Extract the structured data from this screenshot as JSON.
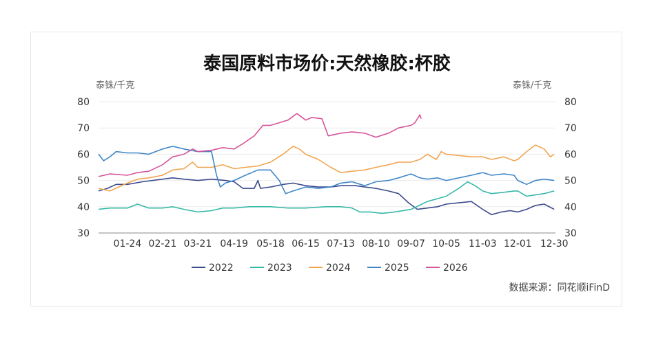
{
  "chart_data": {
    "type": "line",
    "title": "泰国原料市场价:天然橡胶:杯胶",
    "ylabel_left": "泰铢/千克",
    "ylabel_right": "泰铢/千克",
    "ylim": [
      30,
      80
    ],
    "yticks": [
      30,
      40,
      50,
      60,
      70,
      80
    ],
    "x_range": [
      "01-01",
      "12-31"
    ],
    "xticks": [
      "01-24",
      "02-21",
      "03-21",
      "04-19",
      "05-18",
      "06-15",
      "07-13",
      "08-10",
      "09-07",
      "10-05",
      "11-03",
      "12-01",
      "12-30"
    ],
    "grid": true,
    "legend_position": "bottom",
    "source": "数据来源：同花顺iFinD",
    "series": [
      {
        "name": "2022",
        "color": "#3b4a8c",
        "points": [
          [
            "01-01",
            46
          ],
          [
            "01-08",
            47
          ],
          [
            "01-15",
            48.5
          ],
          [
            "01-24",
            48.5
          ],
          [
            "02-05",
            49.5
          ],
          [
            "02-21",
            50.5
          ],
          [
            "03-01",
            51
          ],
          [
            "03-10",
            50.5
          ],
          [
            "03-21",
            50
          ],
          [
            "04-01",
            50.5
          ],
          [
            "04-12",
            50
          ],
          [
            "04-19",
            49.5
          ],
          [
            "04-26",
            47
          ],
          [
            "05-05",
            47
          ],
          [
            "05-08",
            50
          ],
          [
            "05-10",
            47
          ],
          [
            "05-18",
            47.5
          ],
          [
            "05-28",
            48.5
          ],
          [
            "06-05",
            49
          ],
          [
            "06-15",
            48
          ],
          [
            "06-25",
            47.5
          ],
          [
            "07-05",
            47.5
          ],
          [
            "07-13",
            48
          ],
          [
            "07-25",
            48
          ],
          [
            "08-01",
            47.5
          ],
          [
            "08-10",
            47
          ],
          [
            "08-20",
            46
          ],
          [
            "08-28",
            45
          ],
          [
            "09-05",
            41.5
          ],
          [
            "09-12",
            39
          ],
          [
            "09-20",
            39.5
          ],
          [
            "09-28",
            40
          ],
          [
            "10-05",
            41
          ],
          [
            "10-15",
            41.5
          ],
          [
            "10-25",
            42
          ],
          [
            "11-03",
            39
          ],
          [
            "11-10",
            37
          ],
          [
            "11-18",
            38
          ],
          [
            "11-25",
            38.5
          ],
          [
            "12-01",
            38
          ],
          [
            "12-08",
            39
          ],
          [
            "12-15",
            40.5
          ],
          [
            "12-22",
            41
          ],
          [
            "12-30",
            39
          ]
        ]
      },
      {
        "name": "2023",
        "color": "#36b8a8",
        "points": [
          [
            "01-01",
            39
          ],
          [
            "01-10",
            39.5
          ],
          [
            "01-24",
            39.5
          ],
          [
            "02-01",
            41
          ],
          [
            "02-10",
            39.5
          ],
          [
            "02-21",
            39.5
          ],
          [
            "03-01",
            40
          ],
          [
            "03-10",
            39
          ],
          [
            "03-21",
            38
          ],
          [
            "04-01",
            38.5
          ],
          [
            "04-10",
            39.5
          ],
          [
            "04-19",
            39.5
          ],
          [
            "05-01",
            40
          ],
          [
            "05-18",
            40
          ],
          [
            "06-01",
            39.5
          ],
          [
            "06-15",
            39.5
          ],
          [
            "07-01",
            40
          ],
          [
            "07-13",
            40
          ],
          [
            "07-22",
            39.5
          ],
          [
            "07-28",
            38
          ],
          [
            "08-05",
            38
          ],
          [
            "08-15",
            37.5
          ],
          [
            "08-25",
            38
          ],
          [
            "09-07",
            39
          ],
          [
            "09-20",
            42
          ],
          [
            "10-05",
            44
          ],
          [
            "10-15",
            47
          ],
          [
            "10-22",
            49.5
          ],
          [
            "10-28",
            48
          ],
          [
            "11-03",
            46
          ],
          [
            "11-10",
            45
          ],
          [
            "11-20",
            45.5
          ],
          [
            "11-28",
            46
          ],
          [
            "12-01",
            46
          ],
          [
            "12-08",
            44
          ],
          [
            "12-15",
            44.5
          ],
          [
            "12-22",
            45
          ],
          [
            "12-30",
            46
          ]
        ]
      },
      {
        "name": "2024",
        "color": "#f0a550",
        "points": [
          [
            "01-01",
            47
          ],
          [
            "01-10",
            46
          ],
          [
            "01-24",
            49
          ],
          [
            "02-01",
            50.5
          ],
          [
            "02-10",
            51
          ],
          [
            "02-21",
            52
          ],
          [
            "03-01",
            54
          ],
          [
            "03-10",
            54.5
          ],
          [
            "03-17",
            57
          ],
          [
            "03-21",
            55
          ],
          [
            "04-01",
            55
          ],
          [
            "04-10",
            56
          ],
          [
            "04-19",
            54.5
          ],
          [
            "04-28",
            55
          ],
          [
            "05-08",
            55.5
          ],
          [
            "05-18",
            57
          ],
          [
            "05-28",
            60
          ],
          [
            "06-05",
            63
          ],
          [
            "06-10",
            62
          ],
          [
            "06-15",
            60
          ],
          [
            "06-25",
            58
          ],
          [
            "07-05",
            55
          ],
          [
            "07-13",
            53
          ],
          [
            "07-22",
            53.5
          ],
          [
            "08-01",
            54
          ],
          [
            "08-10",
            55
          ],
          [
            "08-20",
            56
          ],
          [
            "08-28",
            57
          ],
          [
            "09-07",
            57
          ],
          [
            "09-14",
            58
          ],
          [
            "09-20",
            60
          ],
          [
            "09-27",
            58
          ],
          [
            "10-01",
            61
          ],
          [
            "10-05",
            60
          ],
          [
            "10-15",
            59.5
          ],
          [
            "10-25",
            59
          ],
          [
            "11-03",
            59
          ],
          [
            "11-10",
            58
          ],
          [
            "11-20",
            59
          ],
          [
            "11-28",
            57.5
          ],
          [
            "12-01",
            58
          ],
          [
            "12-08",
            61
          ],
          [
            "12-15",
            63.5
          ],
          [
            "12-22",
            62
          ],
          [
            "12-27",
            59
          ],
          [
            "12-30",
            60
          ]
        ]
      },
      {
        "name": "2025",
        "color": "#3f86c8",
        "points": [
          [
            "01-01",
            60
          ],
          [
            "01-05",
            57.5
          ],
          [
            "01-10",
            59
          ],
          [
            "01-15",
            61
          ],
          [
            "01-24",
            60.5
          ],
          [
            "02-01",
            60.5
          ],
          [
            "02-10",
            60
          ],
          [
            "02-21",
            62
          ],
          [
            "03-01",
            63
          ],
          [
            "03-10",
            62
          ],
          [
            "03-21",
            61
          ],
          [
            "04-01",
            61
          ],
          [
            "04-05",
            52
          ],
          [
            "04-08",
            47.5
          ],
          [
            "04-12",
            49
          ],
          [
            "04-19",
            50
          ],
          [
            "04-28",
            52
          ],
          [
            "05-08",
            54
          ],
          [
            "05-18",
            54
          ],
          [
            "05-25",
            50
          ],
          [
            "05-30",
            45
          ],
          [
            "06-05",
            46
          ],
          [
            "06-15",
            47.5
          ],
          [
            "06-25",
            47
          ],
          [
            "07-05",
            47.5
          ],
          [
            "07-13",
            49
          ],
          [
            "07-22",
            49.5
          ],
          [
            "08-01",
            48
          ],
          [
            "08-10",
            49.5
          ],
          [
            "08-20",
            50
          ],
          [
            "08-28",
            51
          ],
          [
            "09-07",
            52.5
          ],
          [
            "09-14",
            51
          ],
          [
            "09-20",
            50.5
          ],
          [
            "09-28",
            51
          ],
          [
            "10-05",
            50
          ],
          [
            "10-15",
            51
          ],
          [
            "10-25",
            52
          ],
          [
            "11-03",
            53
          ],
          [
            "11-10",
            52
          ],
          [
            "11-20",
            52.5
          ],
          [
            "11-28",
            52
          ],
          [
            "12-01",
            50
          ],
          [
            "12-08",
            48.5
          ],
          [
            "12-15",
            50
          ],
          [
            "12-22",
            50.5
          ],
          [
            "12-30",
            50
          ]
        ]
      },
      {
        "name": "2026",
        "color": "#d6549a",
        "points": [
          [
            "01-01",
            51.5
          ],
          [
            "01-10",
            52.5
          ],
          [
            "01-24",
            52
          ],
          [
            "02-01",
            53
          ],
          [
            "02-10",
            53.5
          ],
          [
            "02-21",
            56
          ],
          [
            "03-01",
            59
          ],
          [
            "03-10",
            60
          ],
          [
            "03-17",
            62
          ],
          [
            "03-21",
            61
          ],
          [
            "04-01",
            61.5
          ],
          [
            "04-10",
            62.5
          ],
          [
            "04-19",
            62
          ],
          [
            "04-26",
            64
          ],
          [
            "05-05",
            67
          ],
          [
            "05-12",
            71
          ],
          [
            "05-18",
            71
          ],
          [
            "05-25",
            72
          ],
          [
            "06-01",
            73
          ],
          [
            "06-08",
            75.5
          ],
          [
            "06-15",
            73
          ],
          [
            "06-20",
            74
          ],
          [
            "06-28",
            73.5
          ],
          [
            "07-03",
            67
          ],
          [
            "07-13",
            68
          ],
          [
            "07-22",
            68.5
          ],
          [
            "08-01",
            68
          ],
          [
            "08-10",
            66.5
          ],
          [
            "08-20",
            68
          ],
          [
            "08-28",
            70
          ],
          [
            "09-07",
            71
          ],
          [
            "09-10",
            72
          ],
          [
            "09-14",
            75
          ],
          [
            "09-15",
            73.5
          ]
        ]
      }
    ]
  }
}
